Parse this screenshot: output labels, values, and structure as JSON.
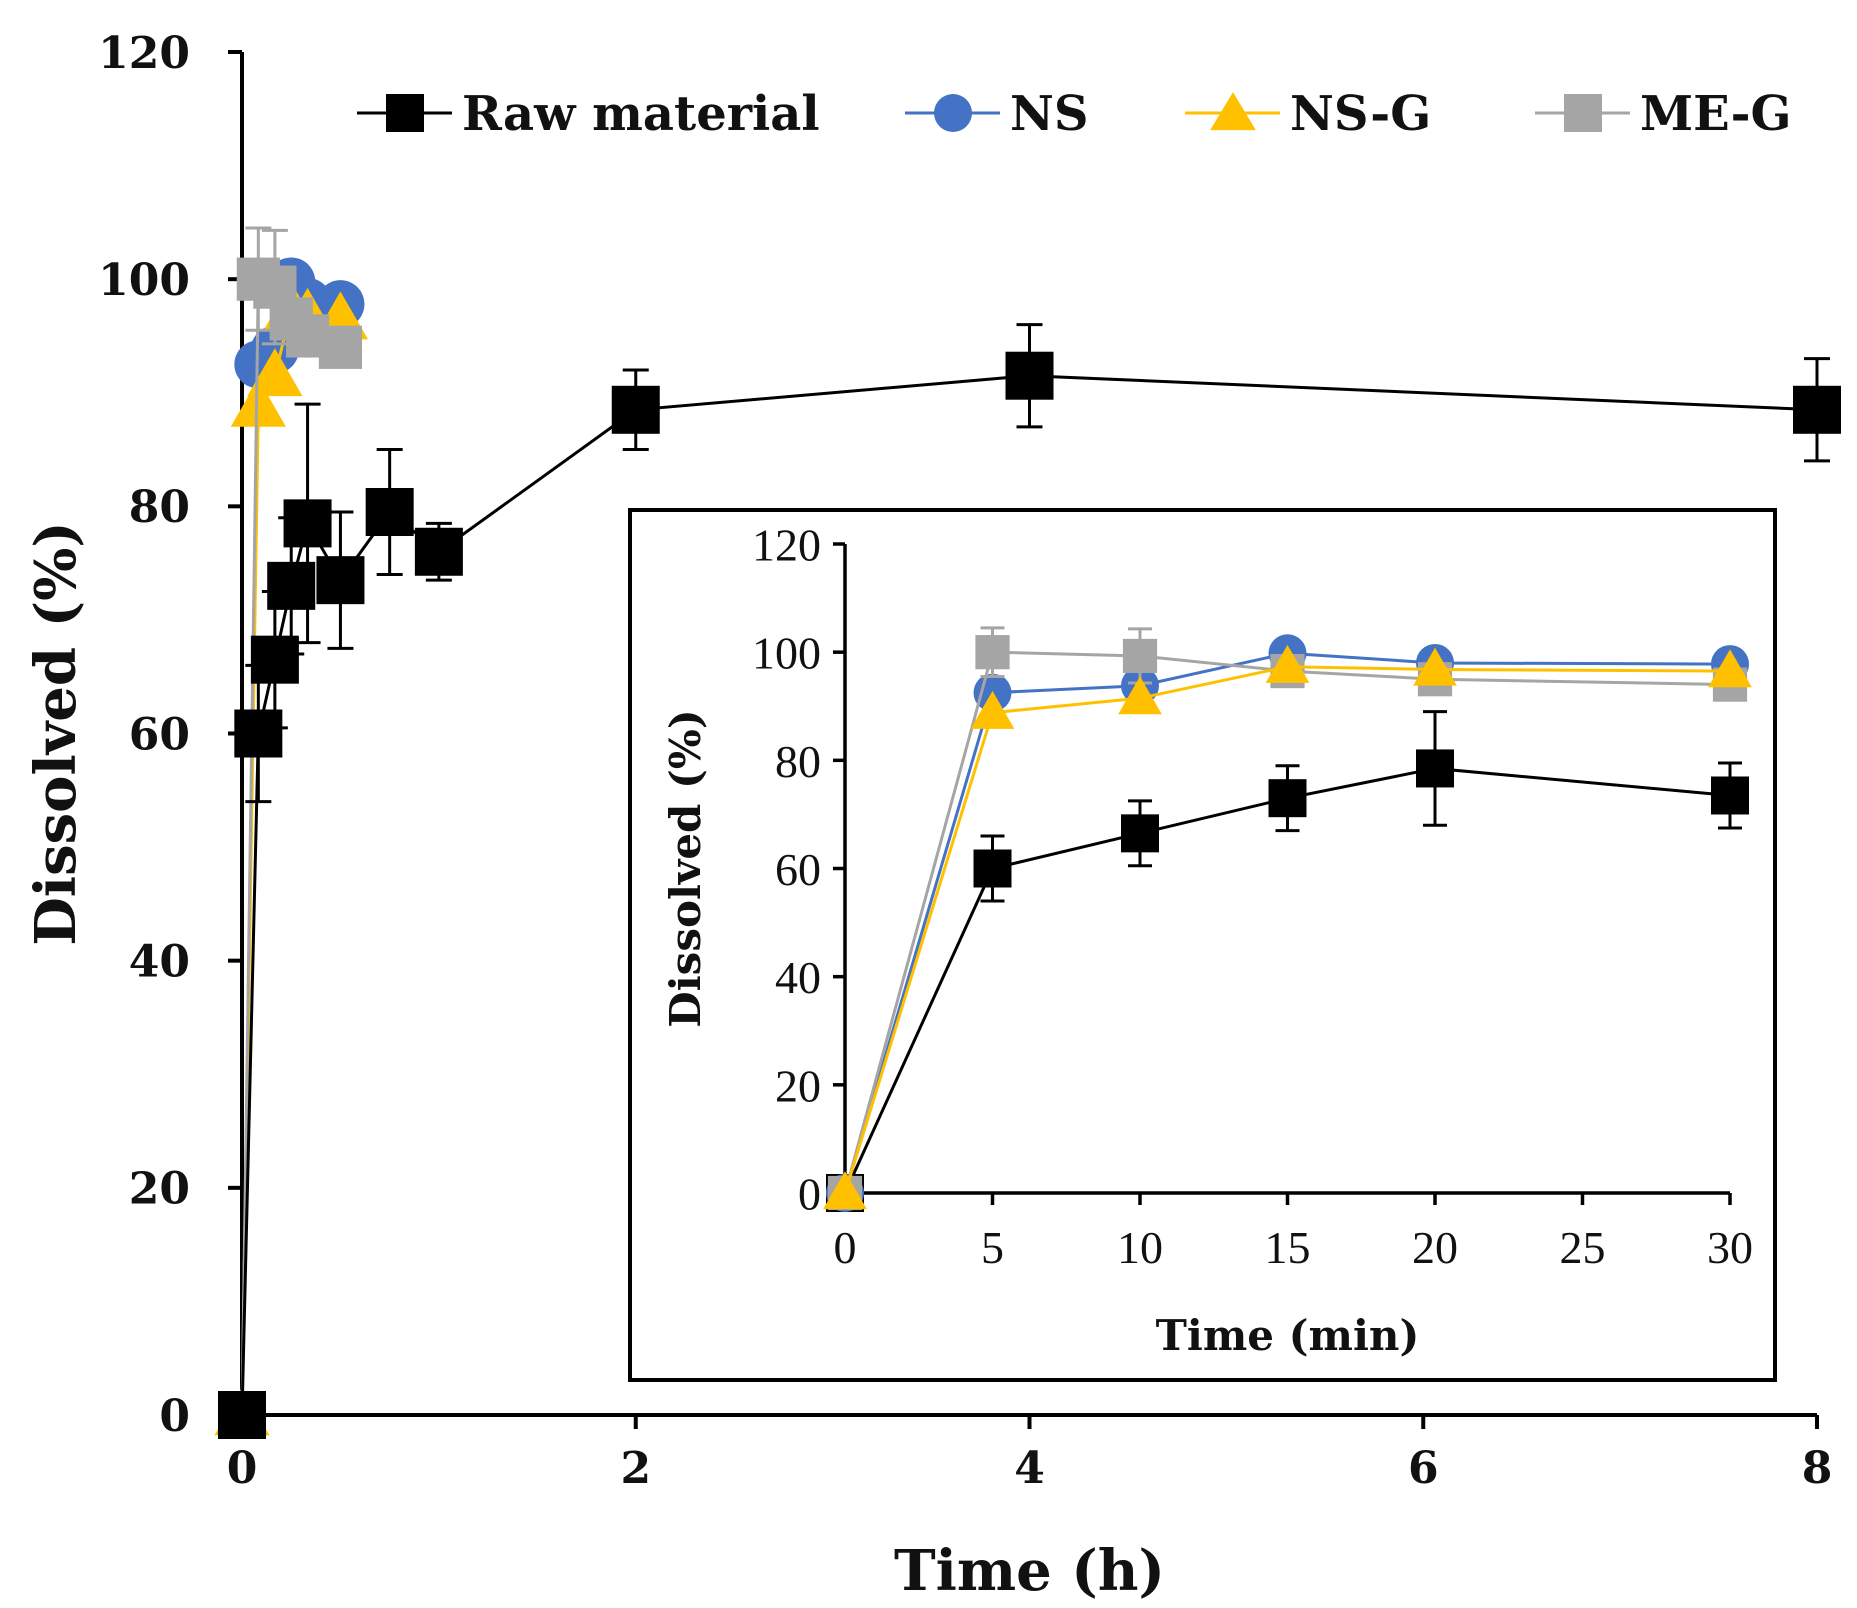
{
  "chart_data": [
    {
      "type": "line",
      "panel": "main",
      "xlabel": "Time (h)",
      "ylabel": "Dissolved  (%)",
      "xlim": [
        0,
        8
      ],
      "ylim": [
        0,
        120
      ],
      "xticks": [
        0,
        2,
        4,
        6,
        8
      ],
      "yticks": [
        0,
        20,
        40,
        60,
        80,
        100,
        120
      ],
      "legend_position": "top",
      "series": [
        {
          "name": "Raw material",
          "color": "#000000",
          "marker": "square",
          "x": [
            0,
            0.083,
            0.167,
            0.25,
            0.333,
            0.5,
            0.75,
            1,
            2,
            4,
            8
          ],
          "y": [
            0,
            60,
            66.5,
            73,
            78.5,
            73.5,
            79.5,
            76,
            88.5,
            91.5,
            88.5
          ],
          "err": [
            0,
            6,
            6,
            6,
            10.5,
            6,
            5.5,
            2.5,
            3.5,
            4.5,
            4.5
          ]
        },
        {
          "name": "NS",
          "color": "#4472C4",
          "marker": "circle",
          "x": [
            0,
            0.083,
            0.167,
            0.25,
            0.333,
            0.5
          ],
          "y": [
            0,
            92.5,
            93.8,
            99.8,
            98,
            97.8
          ],
          "err": [
            0,
            0,
            0,
            0,
            0,
            0
          ]
        },
        {
          "name": "NS-G",
          "color": "#FFC000",
          "marker": "triangle",
          "x": [
            0,
            0.083,
            0.167,
            0.25,
            0.333,
            0.5
          ],
          "y": [
            0,
            88.8,
            91.5,
            97.3,
            96.8,
            96.5
          ],
          "err": [
            0,
            0,
            0,
            0,
            0,
            0
          ]
        },
        {
          "name": "ME-G",
          "color": "#A5A5A5",
          "marker": "square",
          "x": [
            0,
            0.083,
            0.167,
            0.25,
            0.333,
            0.5
          ],
          "y": [
            0,
            100,
            99.3,
            96.5,
            95,
            94
          ],
          "err": [
            0,
            4.5,
            5,
            0,
            0,
            0
          ]
        }
      ]
    },
    {
      "type": "line",
      "panel": "inset",
      "xlabel": "Time (min)",
      "ylabel": "Dissolved (%)",
      "xlim": [
        0,
        30
      ],
      "ylim": [
        0,
        120
      ],
      "xticks": [
        0,
        5,
        10,
        15,
        20,
        25,
        30
      ],
      "yticks": [
        0,
        20,
        40,
        60,
        80,
        100,
        120
      ],
      "series": [
        {
          "name": "Raw material",
          "color": "#000000",
          "marker": "square",
          "x": [
            0,
            5,
            10,
            15,
            20,
            30
          ],
          "y": [
            0,
            60,
            66.5,
            73,
            78.5,
            73.5
          ],
          "err": [
            0,
            6,
            6,
            6,
            10.5,
            6
          ]
        },
        {
          "name": "NS",
          "color": "#4472C4",
          "marker": "circle",
          "x": [
            0,
            5,
            10,
            15,
            20,
            30
          ],
          "y": [
            0,
            92.5,
            93.8,
            99.8,
            98,
            97.8
          ],
          "err": [
            0,
            0,
            0,
            0,
            0,
            0
          ]
        },
        {
          "name": "NS-G",
          "color": "#FFC000",
          "marker": "triangle",
          "x": [
            0,
            5,
            10,
            15,
            20,
            30
          ],
          "y": [
            0,
            88.8,
            91.5,
            97.3,
            96.8,
            96.5
          ],
          "err": [
            0,
            0,
            0,
            0,
            0,
            0
          ]
        },
        {
          "name": "ME-G",
          "color": "#A5A5A5",
          "marker": "square",
          "x": [
            0,
            5,
            10,
            15,
            20,
            30
          ],
          "y": [
            0,
            100,
            99.3,
            96.5,
            95,
            94
          ],
          "err": [
            0,
            4.5,
            5,
            0,
            0,
            0
          ]
        }
      ]
    }
  ]
}
